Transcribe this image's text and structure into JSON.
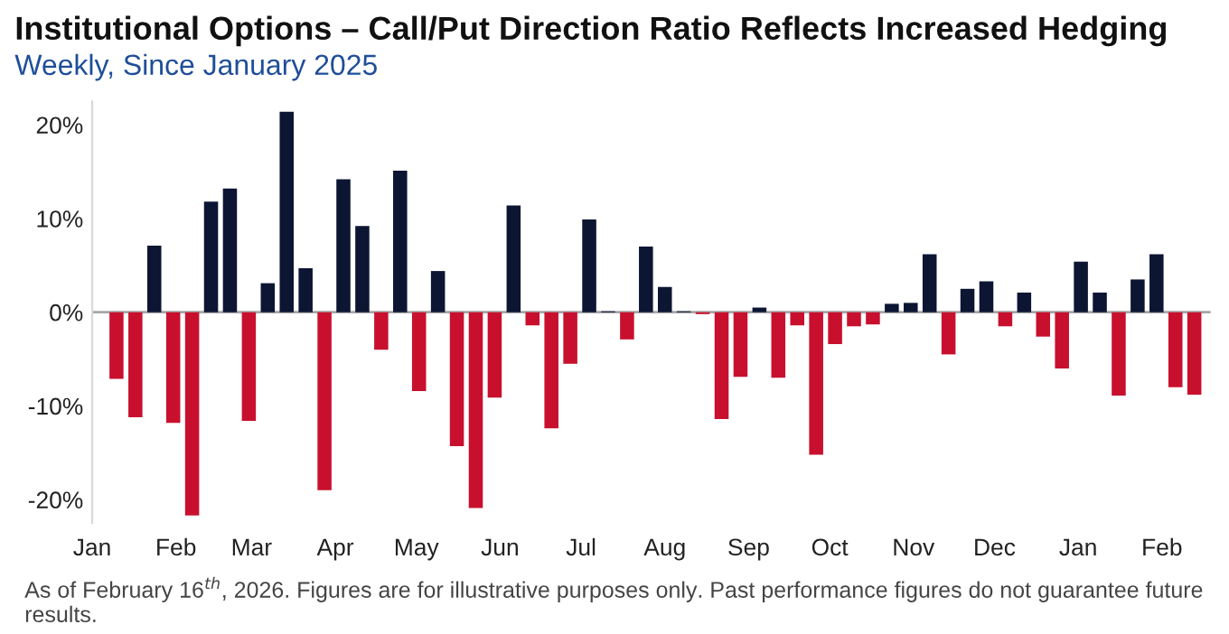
{
  "chart_data": {
    "type": "bar",
    "title": "Institutional Options – Call/Put Direction Ratio Reflects Increased Hedging",
    "subtitle": "Weekly, Since January 2025",
    "x": [
      "2025-01-10",
      "2025-01-17",
      "2025-01-24",
      "2025-01-31",
      "2025-02-07",
      "2025-02-14",
      "2025-02-21",
      "2025-02-28",
      "2025-03-07",
      "2025-03-14",
      "2025-03-21",
      "2025-03-28",
      "2025-04-04",
      "2025-04-11",
      "2025-04-18",
      "2025-04-25",
      "2025-05-02",
      "2025-05-09",
      "2025-05-16",
      "2025-05-23",
      "2025-05-30",
      "2025-06-06",
      "2025-06-13",
      "2025-06-20",
      "2025-06-27",
      "2025-07-04",
      "2025-07-11",
      "2025-07-18",
      "2025-07-25",
      "2025-08-01",
      "2025-08-08",
      "2025-08-15",
      "2025-08-22",
      "2025-08-29",
      "2025-09-05",
      "2025-09-12",
      "2025-09-19",
      "2025-09-26",
      "2025-10-03",
      "2025-10-10",
      "2025-10-17",
      "2025-10-24",
      "2025-10-31",
      "2025-11-07",
      "2025-11-14",
      "2025-11-21",
      "2025-11-28",
      "2025-12-05",
      "2025-12-12",
      "2025-12-19",
      "2025-12-26",
      "2026-01-02",
      "2026-01-09",
      "2026-01-16",
      "2026-01-23",
      "2026-01-30",
      "2026-02-06",
      "2026-02-13"
    ],
    "values": [
      -7.1,
      -11.2,
      7.1,
      -11.8,
      -21.7,
      11.8,
      13.2,
      -11.6,
      3.1,
      21.4,
      4.7,
      -19.0,
      14.2,
      9.2,
      -4.0,
      15.1,
      -8.4,
      4.4,
      -14.3,
      -20.9,
      -9.1,
      11.4,
      -1.4,
      -12.4,
      -5.5,
      9.9,
      0.1,
      -2.9,
      7.0,
      2.7,
      0.1,
      -0.2,
      -11.4,
      -6.9,
      0.5,
      -7.0,
      -1.4,
      -15.2,
      -3.4,
      -1.5,
      -1.3,
      0.9,
      1.0,
      6.2,
      -4.5,
      2.5,
      3.3,
      -1.5,
      2.1,
      -2.6,
      -6.0,
      5.4,
      2.1,
      -8.9,
      3.5,
      6.2,
      -8.0,
      -8.8
    ],
    "colors": [
      "#c8102e",
      "#c8102e",
      "#0c1633",
      "#c8102e",
      "#c8102e",
      "#0c1633",
      "#0c1633",
      "#c8102e",
      "#0c1633",
      "#0c1633",
      "#0c1633",
      "#c8102e",
      "#0c1633",
      "#0c1633",
      "#c8102e",
      "#0c1633",
      "#c8102e",
      "#0c1633",
      "#c8102e",
      "#c8102e",
      "#c8102e",
      "#0c1633",
      "#c8102e",
      "#c8102e",
      "#c8102e",
      "#0c1633",
      "#0c1633",
      "#c8102e",
      "#0c1633",
      "#0c1633",
      "#0c1633",
      "#c8102e",
      "#c8102e",
      "#c8102e",
      "#0c1633",
      "#c8102e",
      "#c8102e",
      "#c8102e",
      "#c8102e",
      "#c8102e",
      "#c8102e",
      "#0c1633",
      "#0c1633",
      "#0c1633",
      "#c8102e",
      "#0c1633",
      "#0c1633",
      "#c8102e",
      "#0c1633",
      "#c8102e",
      "#c8102e",
      "#0c1633",
      "#0c1633",
      "#c8102e",
      "#0c1633",
      "#0c1633",
      "#c8102e",
      "#c8102e"
    ],
    "xlim": [
      "2025-01-01",
      "2026-02-19"
    ],
    "xticks": [
      {
        "value": "2025-01-01",
        "label": "Jan"
      },
      {
        "value": "2025-02-01",
        "label": "Feb"
      },
      {
        "value": "2025-03-01",
        "label": "Mar"
      },
      {
        "value": "2025-04-01",
        "label": "Apr"
      },
      {
        "value": "2025-05-01",
        "label": "May"
      },
      {
        "value": "2025-06-01",
        "label": "Jun"
      },
      {
        "value": "2025-07-01",
        "label": "Jul"
      },
      {
        "value": "2025-08-01",
        "label": "Aug"
      },
      {
        "value": "2025-09-01",
        "label": "Sep"
      },
      {
        "value": "2025-10-01",
        "label": "Oct"
      },
      {
        "value": "2025-11-01",
        "label": "Nov"
      },
      {
        "value": "2025-12-01",
        "label": "Dec"
      },
      {
        "value": "2026-01-01",
        "label": "Jan"
      },
      {
        "value": "2026-02-01",
        "label": "Feb"
      }
    ],
    "yticks": [
      {
        "value": -20,
        "label": "-20%"
      },
      {
        "value": -10,
        "label": "-10%"
      },
      {
        "value": 0,
        "label": "0%"
      },
      {
        "value": 10,
        "label": "10%"
      },
      {
        "value": 20,
        "label": "20%"
      }
    ],
    "ylim": [
      -22.5,
      22.5
    ],
    "ref_lines": [
      {
        "axis": "y",
        "value": 0,
        "color": "#a6a6a6"
      }
    ],
    "grid": false,
    "annotations": [
      "As of February 16$^{th}$, 2026. Figures are for illustrative purposes only. Past performance figures do not guarantee future results."
    ]
  }
}
